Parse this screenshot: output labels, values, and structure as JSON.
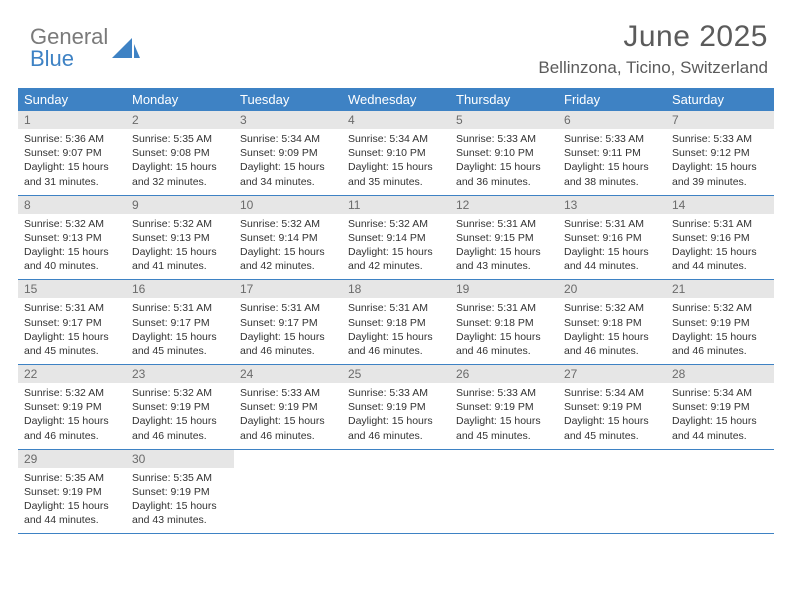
{
  "logo": {
    "textTop": "General",
    "textBottom": "Blue",
    "iconColor": "#3e82c4",
    "grayColor": "#7a7a7a"
  },
  "title": "June 2025",
  "subtitle": "Bellinzona, Ticino, Switzerland",
  "calendar": {
    "type": "calendar-table",
    "columns": [
      "Sunday",
      "Monday",
      "Tuesday",
      "Wednesday",
      "Thursday",
      "Friday",
      "Saturday"
    ],
    "headerBg": "#3e82c4",
    "headerFg": "#ffffff",
    "dayNumBg": "#e6e6e6",
    "dayNumFg": "#6b6b6b",
    "rowDivider": "#3e82c4",
    "bodyFontSize": 10.5,
    "headerFontSize": 13,
    "weeks": [
      [
        {
          "n": "1",
          "sunrise": "Sunrise: 5:36 AM",
          "sunset": "Sunset: 9:07 PM",
          "day1": "Daylight: 15 hours",
          "day2": "and 31 minutes."
        },
        {
          "n": "2",
          "sunrise": "Sunrise: 5:35 AM",
          "sunset": "Sunset: 9:08 PM",
          "day1": "Daylight: 15 hours",
          "day2": "and 32 minutes."
        },
        {
          "n": "3",
          "sunrise": "Sunrise: 5:34 AM",
          "sunset": "Sunset: 9:09 PM",
          "day1": "Daylight: 15 hours",
          "day2": "and 34 minutes."
        },
        {
          "n": "4",
          "sunrise": "Sunrise: 5:34 AM",
          "sunset": "Sunset: 9:10 PM",
          "day1": "Daylight: 15 hours",
          "day2": "and 35 minutes."
        },
        {
          "n": "5",
          "sunrise": "Sunrise: 5:33 AM",
          "sunset": "Sunset: 9:10 PM",
          "day1": "Daylight: 15 hours",
          "day2": "and 36 minutes."
        },
        {
          "n": "6",
          "sunrise": "Sunrise: 5:33 AM",
          "sunset": "Sunset: 9:11 PM",
          "day1": "Daylight: 15 hours",
          "day2": "and 38 minutes."
        },
        {
          "n": "7",
          "sunrise": "Sunrise: 5:33 AM",
          "sunset": "Sunset: 9:12 PM",
          "day1": "Daylight: 15 hours",
          "day2": "and 39 minutes."
        }
      ],
      [
        {
          "n": "8",
          "sunrise": "Sunrise: 5:32 AM",
          "sunset": "Sunset: 9:13 PM",
          "day1": "Daylight: 15 hours",
          "day2": "and 40 minutes."
        },
        {
          "n": "9",
          "sunrise": "Sunrise: 5:32 AM",
          "sunset": "Sunset: 9:13 PM",
          "day1": "Daylight: 15 hours",
          "day2": "and 41 minutes."
        },
        {
          "n": "10",
          "sunrise": "Sunrise: 5:32 AM",
          "sunset": "Sunset: 9:14 PM",
          "day1": "Daylight: 15 hours",
          "day2": "and 42 minutes."
        },
        {
          "n": "11",
          "sunrise": "Sunrise: 5:32 AM",
          "sunset": "Sunset: 9:14 PM",
          "day1": "Daylight: 15 hours",
          "day2": "and 42 minutes."
        },
        {
          "n": "12",
          "sunrise": "Sunrise: 5:31 AM",
          "sunset": "Sunset: 9:15 PM",
          "day1": "Daylight: 15 hours",
          "day2": "and 43 minutes."
        },
        {
          "n": "13",
          "sunrise": "Sunrise: 5:31 AM",
          "sunset": "Sunset: 9:16 PM",
          "day1": "Daylight: 15 hours",
          "day2": "and 44 minutes."
        },
        {
          "n": "14",
          "sunrise": "Sunrise: 5:31 AM",
          "sunset": "Sunset: 9:16 PM",
          "day1": "Daylight: 15 hours",
          "day2": "and 44 minutes."
        }
      ],
      [
        {
          "n": "15",
          "sunrise": "Sunrise: 5:31 AM",
          "sunset": "Sunset: 9:17 PM",
          "day1": "Daylight: 15 hours",
          "day2": "and 45 minutes."
        },
        {
          "n": "16",
          "sunrise": "Sunrise: 5:31 AM",
          "sunset": "Sunset: 9:17 PM",
          "day1": "Daylight: 15 hours",
          "day2": "and 45 minutes."
        },
        {
          "n": "17",
          "sunrise": "Sunrise: 5:31 AM",
          "sunset": "Sunset: 9:17 PM",
          "day1": "Daylight: 15 hours",
          "day2": "and 46 minutes."
        },
        {
          "n": "18",
          "sunrise": "Sunrise: 5:31 AM",
          "sunset": "Sunset: 9:18 PM",
          "day1": "Daylight: 15 hours",
          "day2": "and 46 minutes."
        },
        {
          "n": "19",
          "sunrise": "Sunrise: 5:31 AM",
          "sunset": "Sunset: 9:18 PM",
          "day1": "Daylight: 15 hours",
          "day2": "and 46 minutes."
        },
        {
          "n": "20",
          "sunrise": "Sunrise: 5:32 AM",
          "sunset": "Sunset: 9:18 PM",
          "day1": "Daylight: 15 hours",
          "day2": "and 46 minutes."
        },
        {
          "n": "21",
          "sunrise": "Sunrise: 5:32 AM",
          "sunset": "Sunset: 9:19 PM",
          "day1": "Daylight: 15 hours",
          "day2": "and 46 minutes."
        }
      ],
      [
        {
          "n": "22",
          "sunrise": "Sunrise: 5:32 AM",
          "sunset": "Sunset: 9:19 PM",
          "day1": "Daylight: 15 hours",
          "day2": "and 46 minutes."
        },
        {
          "n": "23",
          "sunrise": "Sunrise: 5:32 AM",
          "sunset": "Sunset: 9:19 PM",
          "day1": "Daylight: 15 hours",
          "day2": "and 46 minutes."
        },
        {
          "n": "24",
          "sunrise": "Sunrise: 5:33 AM",
          "sunset": "Sunset: 9:19 PM",
          "day1": "Daylight: 15 hours",
          "day2": "and 46 minutes."
        },
        {
          "n": "25",
          "sunrise": "Sunrise: 5:33 AM",
          "sunset": "Sunset: 9:19 PM",
          "day1": "Daylight: 15 hours",
          "day2": "and 46 minutes."
        },
        {
          "n": "26",
          "sunrise": "Sunrise: 5:33 AM",
          "sunset": "Sunset: 9:19 PM",
          "day1": "Daylight: 15 hours",
          "day2": "and 45 minutes."
        },
        {
          "n": "27",
          "sunrise": "Sunrise: 5:34 AM",
          "sunset": "Sunset: 9:19 PM",
          "day1": "Daylight: 15 hours",
          "day2": "and 45 minutes."
        },
        {
          "n": "28",
          "sunrise": "Sunrise: 5:34 AM",
          "sunset": "Sunset: 9:19 PM",
          "day1": "Daylight: 15 hours",
          "day2": "and 44 minutes."
        }
      ],
      [
        {
          "n": "29",
          "sunrise": "Sunrise: 5:35 AM",
          "sunset": "Sunset: 9:19 PM",
          "day1": "Daylight: 15 hours",
          "day2": "and 44 minutes."
        },
        {
          "n": "30",
          "sunrise": "Sunrise: 5:35 AM",
          "sunset": "Sunset: 9:19 PM",
          "day1": "Daylight: 15 hours",
          "day2": "and 43 minutes."
        },
        null,
        null,
        null,
        null,
        null
      ]
    ]
  }
}
